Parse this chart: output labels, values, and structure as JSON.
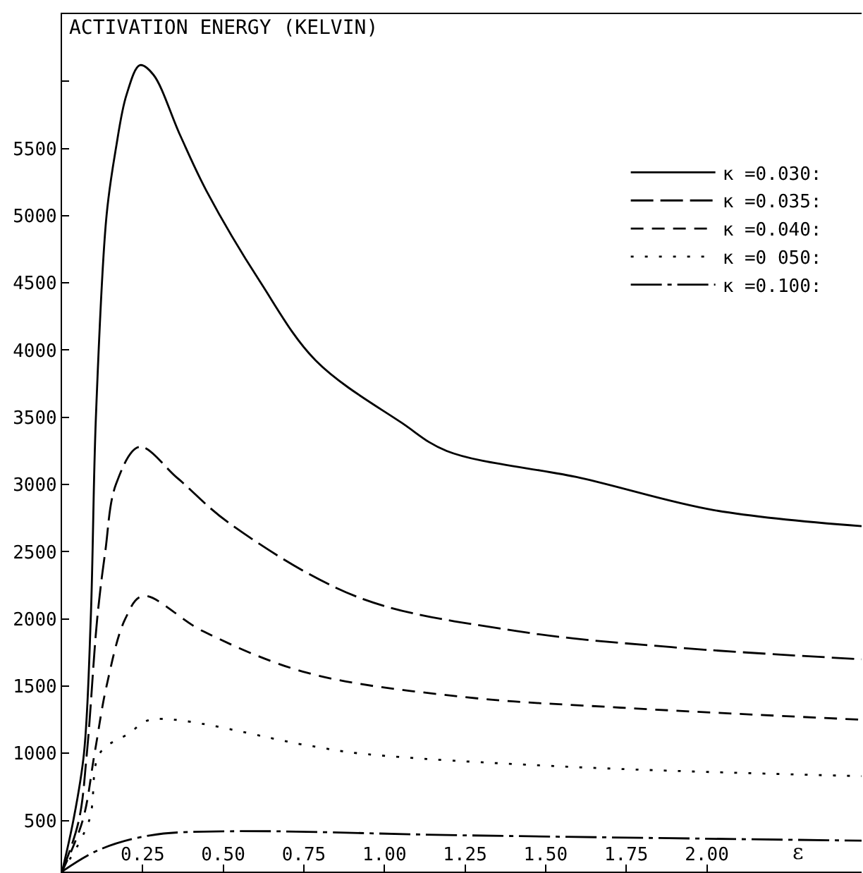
{
  "chart_data": {
    "type": "line",
    "title": "ACTIVATION ENERGY (KELVIN)",
    "xlabel": "ε",
    "xlim": [
      0,
      2.48
    ],
    "ylim": [
      120,
      6500
    ],
    "xticks": [
      0.25,
      {
        "value": 0.5,
        "label": "0.50"
      },
      0.75,
      {
        "value": 1,
        "label": "1.00"
      },
      1.25,
      {
        "value": 1.5,
        "label": "1.50"
      },
      1.75,
      {
        "value": 2,
        "label": "2.00"
      }
    ],
    "yticks": [
      500,
      1000,
      1500,
      2000,
      2500,
      3000,
      3500,
      4000,
      4500,
      5000,
      5500,
      {
        "value": 6000,
        "label": null
      }
    ],
    "legend": "top right",
    "marker": "none",
    "series": [
      {
        "name": "κ =0.030:",
        "color": "#000000",
        "line_style": "solid",
        "x": [
          0,
          0.035,
          0.068,
          0.089,
          0.105,
          0.138,
          0.167,
          0.2,
          0.242,
          0.283,
          0.366,
          0.449,
          0.614,
          0.788,
          1.053,
          1.193,
          1.607,
          2.021,
          2.48
        ],
        "values": [
          120,
          500,
          1000,
          2000,
          3500,
          5000,
          5500,
          5900,
          6120,
          6050,
          5600,
          5180,
          4510,
          3920,
          3460,
          3250,
          3050,
          2810,
          2690
        ]
      },
      {
        "name": "κ =0.035:",
        "color": "#000000",
        "line_style": "dashed",
        "x": [
          0,
          0.052,
          0.077,
          0.109,
          0.134,
          0.167,
          0.24,
          0.357,
          0.52,
          0.92,
          1.41,
          1.89,
          2.48
        ],
        "values": [
          120,
          500,
          1000,
          2000,
          2500,
          3000,
          3280,
          3050,
          2710,
          2160,
          1910,
          1790,
          1700
        ]
      },
      {
        "name": "κ =0.040:",
        "color": "#000000",
        "line_style": "dashed",
        "x": [
          0,
          0.064,
          0.101,
          0.138,
          0.196,
          0.25,
          0.436,
          0.759,
          1.243,
          1.731,
          2.48
        ],
        "values": [
          120,
          500,
          1000,
          1500,
          2000,
          2170,
          1910,
          1600,
          1420,
          1340,
          1250
        ]
      },
      {
        "name": "κ =0 050:",
        "color": "#000000",
        "line_style": "dotted",
        "x": [
          0,
          0.084,
          0.117,
          0.209,
          0.275,
          0.759,
          0.92,
          1.57,
          2.48
        ],
        "values": [
          120,
          500,
          1000,
          1150,
          1250,
          1060,
          1000,
          900,
          830
        ]
      },
      {
        "name": "κ =0.100:",
        "color": "#000000",
        "line_style": "dashed",
        "x": [
          0,
          0.113,
          0.275,
          0.52,
          1.243,
          2.48
        ],
        "values": [
          120,
          280,
          390,
          420,
          390,
          350
        ]
      }
    ]
  }
}
